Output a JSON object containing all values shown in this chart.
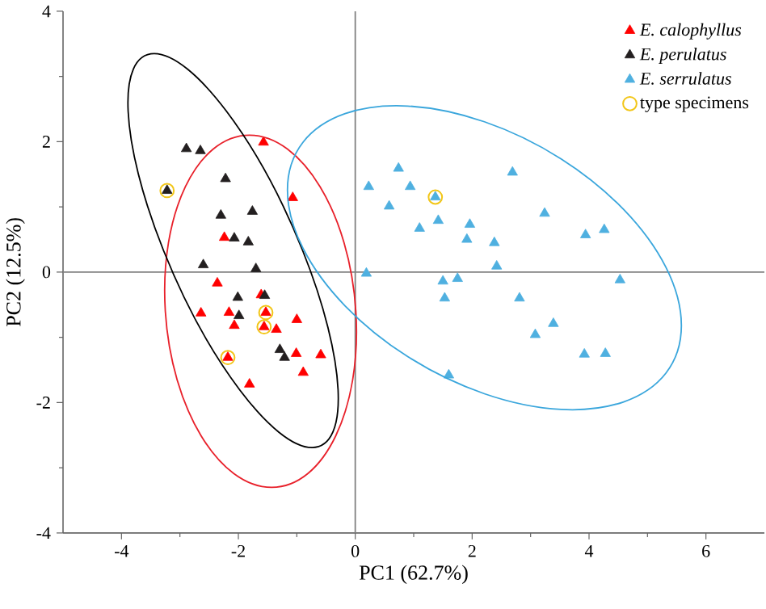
{
  "chart_data": {
    "type": "scatter",
    "xlabel": "PC1 (62.7%)",
    "ylabel": "PC2 (12.5%)",
    "xlim": [
      -5,
      7
    ],
    "ylim": [
      -4,
      4
    ],
    "xticks": [
      -4,
      -2,
      0,
      2,
      4,
      6
    ],
    "yticks": [
      -4,
      -2,
      0,
      2,
      4
    ],
    "legend": "top right",
    "grid": false,
    "ref_lines": [
      {
        "axis": "x",
        "value": 0,
        "color": "#808080"
      },
      {
        "axis": "y",
        "value": 0,
        "color": "#808080"
      }
    ],
    "series": [
      {
        "name": "*E. calophyllus*",
        "color": "#ff0000",
        "marker": "triangle",
        "x": [
          -1.57,
          -1.07,
          -2.24,
          -2.36,
          -1.61,
          -2.64,
          -2.16,
          -1.53,
          -2.07,
          -1.56,
          -1.35,
          -1.0,
          -2.18,
          -1.01,
          -0.59,
          -0.89,
          -1.81
        ],
        "values": [
          1.99,
          1.14,
          0.53,
          -0.17,
          -0.35,
          -0.63,
          -0.62,
          -0.62,
          -0.82,
          -0.84,
          -0.88,
          -0.73,
          -1.31,
          -1.25,
          -1.27,
          -1.54,
          -1.72
        ]
      },
      {
        "name": "*E. perulatus*",
        "color": "#231f20",
        "marker": "triangle",
        "x": [
          -2.89,
          -2.65,
          -2.22,
          -3.22,
          -2.3,
          -1.76,
          -2.07,
          -1.83,
          -2.6,
          -1.7,
          -1.55,
          -2.01,
          -1.99,
          -1.29,
          -1.21
        ],
        "values": [
          1.89,
          1.86,
          1.43,
          1.25,
          0.87,
          0.93,
          0.52,
          0.46,
          0.11,
          0.05,
          -0.36,
          -0.39,
          -0.67,
          -1.19,
          -1.31
        ]
      },
      {
        "name": "*E. serrulatus*",
        "color": "#4fb0e0",
        "marker": "triangle",
        "x": [
          0.74,
          0.23,
          0.94,
          2.69,
          0.58,
          1.37,
          1.1,
          1.42,
          1.96,
          1.91,
          2.38,
          3.24,
          3.94,
          4.26,
          2.42,
          0.19,
          1.5,
          1.75,
          1.53,
          4.53,
          2.81,
          3.39,
          3.08,
          3.92,
          4.28,
          1.6
        ],
        "values": [
          1.59,
          1.31,
          1.31,
          1.53,
          1.01,
          1.15,
          0.67,
          0.79,
          0.73,
          0.5,
          0.45,
          0.9,
          0.57,
          0.65,
          0.09,
          -0.02,
          -0.14,
          -0.1,
          -0.4,
          -0.12,
          -0.4,
          -0.79,
          -0.96,
          -1.26,
          -1.25,
          -1.58
        ]
      },
      {
        "name": "type specimens",
        "color": "#f2c618",
        "marker": "circle",
        "x": [
          -3.22,
          -1.53,
          -1.56,
          -2.18,
          1.37
        ],
        "values": [
          1.25,
          -0.62,
          -0.84,
          -1.31,
          1.15
        ]
      }
    ]
  }
}
